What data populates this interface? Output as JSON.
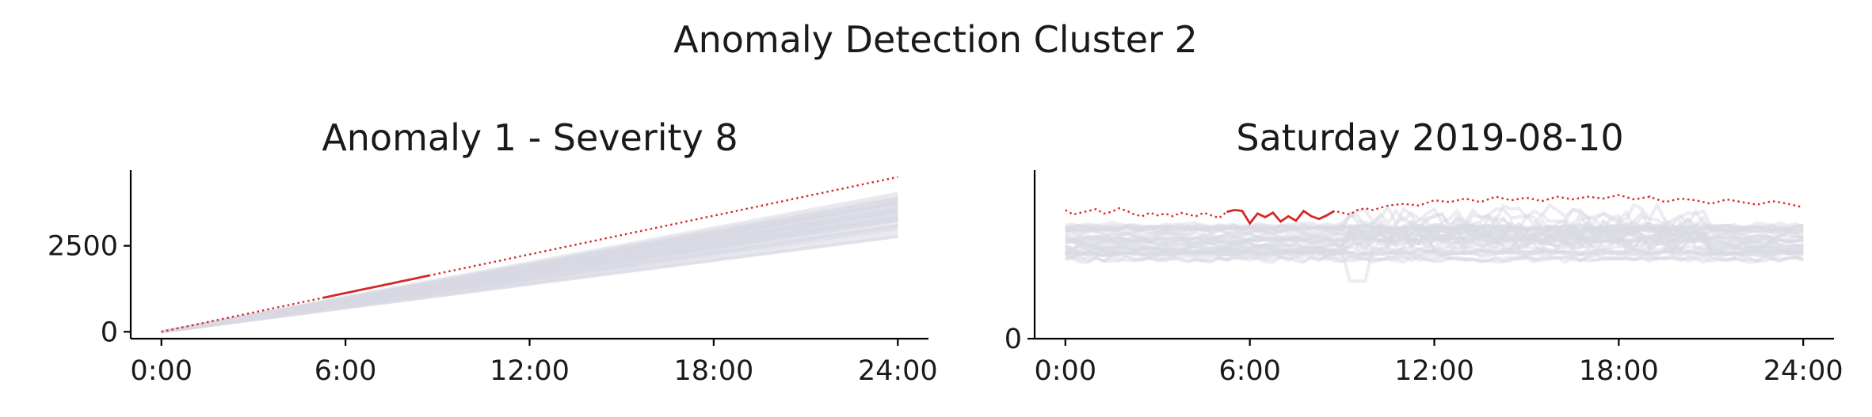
{
  "figure": {
    "title": "Anomaly Detection Cluster 2"
  },
  "colors": {
    "background_series": "#d9d9e3",
    "anomaly": "#d62728",
    "axis": "#000000"
  },
  "chart_data": [
    {
      "type": "line",
      "title": "Anomaly 1 - Severity 8",
      "xlabel": "",
      "ylabel": "",
      "x_ticks": [
        "0:00",
        "6:00",
        "12:00",
        "18:00",
        "24:00"
      ],
      "y_ticks": [
        0,
        2500
      ],
      "xlim": [
        -1,
        25
      ],
      "ylim": [
        -200,
        4700
      ],
      "background_series_count": 40,
      "background_series_ends_at_24h": [
        2800,
        2900,
        3000,
        3100,
        3200,
        3250,
        3300,
        3350,
        3400,
        3450,
        3500,
        3550,
        3600,
        3650,
        3700,
        3750,
        3800,
        3850,
        3900,
        4000
      ],
      "anomaly_series": {
        "x": [
          0,
          24
        ],
        "y": [
          0,
          4500
        ],
        "style": "dotted",
        "highlight_solid_range": [
          5.25,
          8.75
        ]
      },
      "grid": false,
      "legend": "none"
    },
    {
      "type": "line",
      "title": "Saturday 2019-08-10",
      "xlabel": "",
      "ylabel": "",
      "x_ticks": [
        "0:00",
        "6:00",
        "12:00",
        "18:00",
        "24:00"
      ],
      "y_ticks": [
        0
      ],
      "xlim": [
        -1,
        25
      ],
      "ylim": [
        0,
        1900
      ],
      "background_band": {
        "low": 950,
        "high": 1300,
        "extra_low": 880,
        "dip_at": 9.5,
        "dip_value": 650
      },
      "anomaly_series": {
        "x": [
          0,
          0.25,
          0.5,
          0.75,
          1,
          1.25,
          1.5,
          1.75,
          2,
          2.25,
          2.5,
          2.75,
          3,
          3.25,
          3.5,
          3.75,
          4,
          4.25,
          4.5,
          4.75,
          5,
          5.25,
          5.5,
          5.75,
          6,
          6.25,
          6.5,
          6.75,
          7,
          7.25,
          7.5,
          7.75,
          8,
          8.25,
          8.5,
          8.75,
          9,
          9.25,
          9.5,
          9.75,
          10,
          10.5,
          11,
          11.5,
          12,
          12.5,
          13,
          13.5,
          14,
          14.5,
          15,
          15.5,
          16,
          16.5,
          17,
          17.5,
          18,
          18.5,
          19,
          19.5,
          20,
          20.5,
          21,
          21.5,
          22,
          22.5,
          23,
          23.5,
          24
        ],
        "y": [
          1450,
          1400,
          1420,
          1440,
          1460,
          1410,
          1430,
          1470,
          1440,
          1400,
          1380,
          1420,
          1390,
          1410,
          1380,
          1420,
          1400,
          1380,
          1420,
          1390,
          1360,
          1430,
          1450,
          1440,
          1300,
          1410,
          1370,
          1420,
          1320,
          1380,
          1330,
          1440,
          1380,
          1350,
          1390,
          1440,
          1420,
          1400,
          1450,
          1470,
          1450,
          1500,
          1520,
          1500,
          1560,
          1540,
          1580,
          1540,
          1600,
          1560,
          1590,
          1550,
          1600,
          1570,
          1600,
          1580,
          1620,
          1570,
          1600,
          1540,
          1580,
          1560,
          1520,
          1570,
          1540,
          1510,
          1550,
          1520,
          1480
        ],
        "style": "dotted",
        "highlight_solid_range": [
          5.25,
          8.75
        ]
      },
      "grid": false,
      "legend": "none"
    }
  ]
}
